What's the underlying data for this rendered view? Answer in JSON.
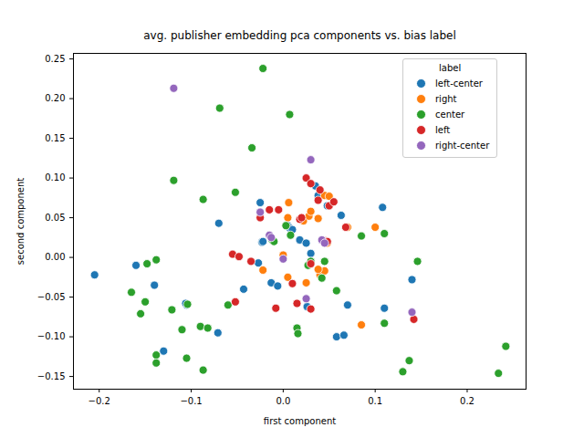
{
  "chart_data": {
    "type": "scatter",
    "title": "avg. publisher embedding pca components vs. bias label",
    "x_label": "first component",
    "y_label": "second component",
    "legend_title": "label",
    "legend": "upper right",
    "grid": false,
    "xlim": [
      -0.228,
      0.264
    ],
    "ylim": [
      -0.166,
      0.257
    ],
    "xticks": [
      {
        "value": -0.2,
        "label": "−0.2"
      },
      {
        "value": -0.1,
        "label": "−0.1"
      },
      {
        "value": 0,
        "label": "0.0"
      },
      {
        "value": 0.1,
        "label": "0.1"
      },
      {
        "value": 0.2,
        "label": "0.2"
      }
    ],
    "yticks": [
      {
        "value": -0.15,
        "label": "−0.15"
      },
      {
        "value": -0.1,
        "label": "−0.10"
      },
      {
        "value": -0.05,
        "label": "−0.05"
      },
      {
        "value": 0,
        "label": "0.00"
      },
      {
        "value": 0.05,
        "label": "0.05"
      },
      {
        "value": 0.1,
        "label": "0.10"
      },
      {
        "value": 0.15,
        "label": "0.15"
      },
      {
        "value": 0.2,
        "label": "0.20"
      },
      {
        "value": 0.25,
        "label": "0.25"
      }
    ],
    "series": [
      {
        "name": "left-center",
        "color": "#1f77b4",
        "marker": "circle",
        "x": [
          -0.205,
          -0.16,
          -0.14,
          -0.13,
          -0.105,
          -0.106,
          -0.07,
          -0.071,
          -0.043,
          -0.025,
          -0.023,
          -0.027,
          -0.013,
          -0.006,
          0.005,
          0.007,
          0.01,
          0.018,
          0.025,
          0.026,
          0.03,
          0.035,
          0.038,
          0.04,
          0.048,
          0.063,
          0.058,
          0.066,
          0.07,
          0.108,
          0.11,
          0.14,
          -0.022
        ],
        "y": [
          -0.022,
          -0.01,
          -0.035,
          -0.118,
          -0.06,
          -0.058,
          0.043,
          -0.095,
          -0.04,
          0.069,
          0.019,
          -0.007,
          -0.032,
          -0.036,
          0.04,
          0.037,
          0.035,
          0.022,
          0.018,
          -0.062,
          0.005,
          0.09,
          0.078,
          -0.018,
          0.065,
          0.053,
          -0.1,
          -0.098,
          -0.06,
          0.063,
          -0.064,
          -0.028,
          0.02
        ]
      },
      {
        "name": "right",
        "color": "#ff7f0e",
        "marker": "circle",
        "x": [
          -0.022,
          0.0,
          0.005,
          0.006,
          0.005,
          0.022,
          0.025,
          0.028,
          0.03,
          0.038,
          0.04,
          0.045,
          0.045,
          0.048,
          0.05,
          0.07,
          0.085,
          0.1,
          0.038
        ],
        "y": [
          -0.016,
          0.003,
          0.05,
          0.069,
          -0.025,
          0.046,
          -0.032,
          0.052,
          0.058,
          0.049,
          -0.022,
          -0.017,
          0.078,
          0.018,
          0.077,
          0.038,
          -0.085,
          0.038,
          -0.015
        ]
      },
      {
        "name": "center",
        "color": "#2ca02c",
        "marker": "circle",
        "x": [
          -0.022,
          0.007,
          -0.069,
          -0.034,
          -0.119,
          -0.052,
          -0.087,
          0.003,
          -0.012,
          0.008,
          -0.165,
          -0.148,
          -0.138,
          -0.15,
          -0.155,
          -0.121,
          -0.138,
          -0.138,
          -0.105,
          -0.09,
          -0.082,
          -0.087,
          -0.11,
          -0.104,
          -0.06,
          0.015,
          0.016,
          0.027,
          0.03,
          0.045,
          0.042,
          0.058,
          0.085,
          0.11,
          0.11,
          0.146,
          0.13,
          0.137,
          0.242,
          0.234,
          -0.01
        ],
        "y": [
          0.238,
          0.18,
          0.188,
          0.138,
          0.097,
          0.082,
          0.073,
          0.04,
          0.022,
          0.028,
          -0.044,
          -0.008,
          -0.003,
          -0.056,
          -0.071,
          -0.066,
          -0.123,
          -0.133,
          -0.127,
          -0.087,
          -0.089,
          -0.142,
          -0.091,
          -0.059,
          -0.06,
          -0.089,
          -0.096,
          -0.01,
          -0.005,
          -0.005,
          -0.026,
          -0.042,
          0.027,
          0.03,
          -0.083,
          -0.005,
          -0.144,
          -0.13,
          -0.112,
          -0.146,
          0.02
        ]
      },
      {
        "name": "left",
        "color": "#d62728",
        "marker": "circle",
        "x": [
          -0.055,
          -0.048,
          -0.035,
          -0.052,
          -0.025,
          -0.015,
          -0.005,
          -0.008,
          0.01,
          0.015,
          0.018,
          0.02,
          0.025,
          0.03,
          0.038,
          0.04,
          0.045,
          0.048,
          0.05,
          0.055,
          0.068,
          0.03,
          0.142,
          0.03
        ],
        "y": [
          0.004,
          0.001,
          -0.005,
          -0.056,
          0.05,
          0.06,
          0.06,
          -0.064,
          -0.033,
          -0.058,
          0.048,
          0.05,
          0.1,
          0.093,
          0.072,
          0.085,
          0.021,
          0.02,
          0.065,
          0.07,
          0.038,
          -0.065,
          -0.078,
          -0.008
        ]
      },
      {
        "name": "right-center",
        "color": "#9467bd",
        "marker": "circle",
        "x": [
          -0.119,
          0.03,
          -0.025,
          -0.015,
          -0.013,
          0.042,
          0.045,
          0.025,
          0.14,
          0.0
        ],
        "y": [
          0.213,
          0.123,
          0.057,
          0.028,
          0.025,
          0.022,
          0.018,
          -0.052,
          -0.069,
          -0.002
        ]
      }
    ]
  }
}
